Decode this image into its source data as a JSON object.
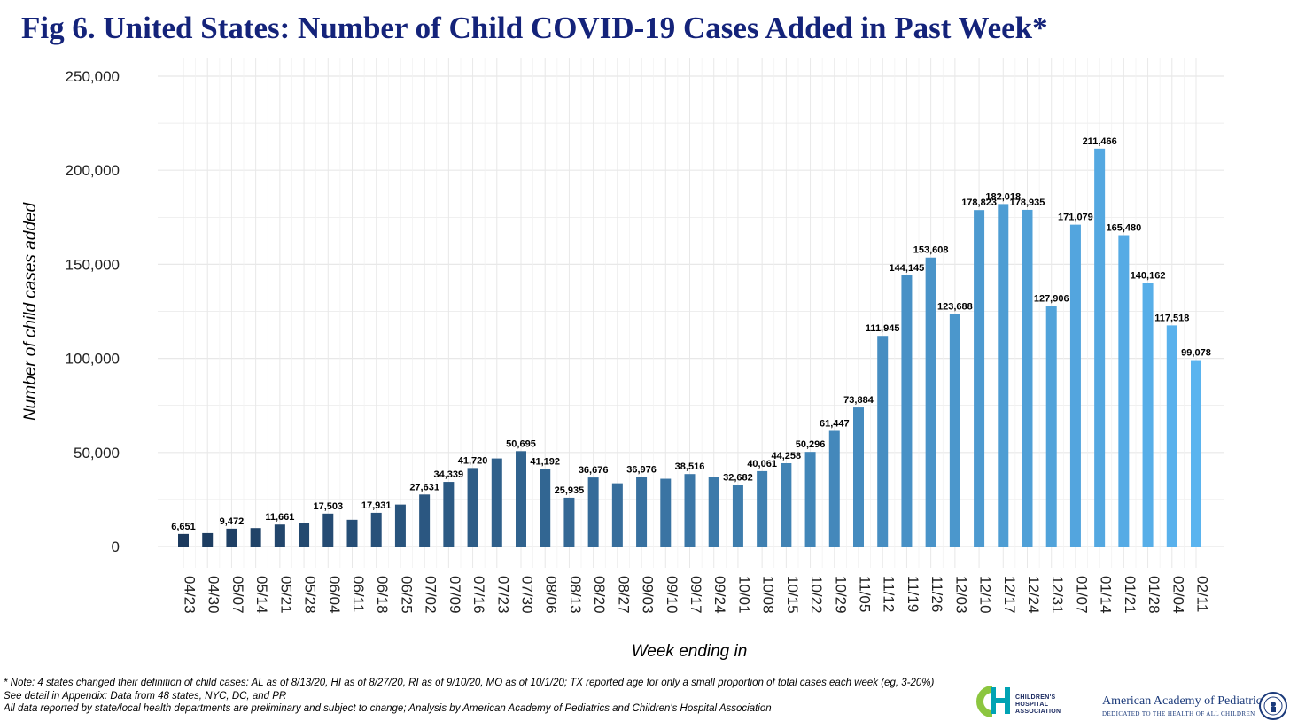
{
  "chart_data": {
    "type": "bar",
    "title": "Fig 6. United States: Number of Child COVID-19 Cases Added in Past Week*",
    "xlabel": "Week ending in",
    "ylabel": "Number of child cases added",
    "ylim": [
      0,
      250000
    ],
    "yticks": [
      0,
      50000,
      100000,
      150000,
      200000,
      250000
    ],
    "ytick_labels": [
      "0",
      "50,000",
      "100,000",
      "150,000",
      "200,000",
      "250,000"
    ],
    "grid": true,
    "categories": [
      "04/23",
      "04/30",
      "05/07",
      "05/14",
      "05/21",
      "05/28",
      "06/04",
      "06/11",
      "06/18",
      "06/25",
      "07/02",
      "07/09",
      "07/16",
      "07/23",
      "07/30",
      "08/06",
      "08/13",
      "08/20",
      "08/27",
      "09/03",
      "09/10",
      "09/17",
      "09/24",
      "10/01",
      "10/08",
      "10/15",
      "10/22",
      "10/29",
      "11/05",
      "11/12",
      "11/19",
      "11/26",
      "12/03",
      "12/10",
      "12/17",
      "12/24",
      "12/31",
      "01/07",
      "01/14",
      "01/21",
      "01/28",
      "02/04",
      "02/11"
    ],
    "values": [
      6651,
      7100,
      9472,
      9800,
      11661,
      12700,
      17503,
      14200,
      17931,
      22300,
      27631,
      34339,
      41720,
      46800,
      50695,
      41192,
      25935,
      36676,
      33600,
      36976,
      36000,
      38516,
      36900,
      32682,
      40061,
      44258,
      50296,
      61447,
      73884,
      111945,
      144145,
      153608,
      123688,
      178823,
      182018,
      178935,
      127906,
      171079,
      211466,
      165480,
      140162,
      117518,
      99078
    ],
    "data_labels": [
      "6,651",
      "",
      "9,472",
      "",
      "11,661",
      "",
      "17,503",
      "",
      "17,931",
      "",
      "27,631",
      "34,339",
      "41,720",
      "",
      "50,695",
      "41,192",
      "25,935",
      "36,676",
      "",
      "36,976",
      "",
      "38,516",
      "",
      "32,682",
      "40,061",
      "44,258",
      "50,296",
      "61,447",
      "73,884",
      "111,945",
      "144,145",
      "153,608",
      "123,688",
      "178,823",
      "182,018",
      "178,935",
      "127,906",
      "171,079",
      "211,466",
      "165,480",
      "140,162",
      "117,518",
      "99,078"
    ],
    "colors": {
      "bar_start": "#1c3a5e",
      "bar_end": "#5ab4ef",
      "title": "#14237a",
      "grid": "#e8e8e8"
    }
  },
  "notes": [
    "* Note: 4 states changed their definition of child cases: AL as of 8/13/20, HI as of 8/27/20, RI as of 9/10/20, MO as of 10/1/20; TX reported age for only a small proportion of total cases each week (eg, 3-20%)",
    "See detail in Appendix: Data from 48 states, NYC, DC, and PR",
    "All data reported by state/local health departments are preliminary and subject to change; Analysis by American Academy of Pediatrics and Children's Hospital Association"
  ],
  "logos": {
    "cha_line1": "CHILDREN'S",
    "cha_line2": "HOSPITAL",
    "cha_line3": "ASSOCIATION",
    "aap_name": "American Academy of Pediatrics",
    "aap_tagline": "DEDICATED TO THE HEALTH OF ALL CHILDREN",
    "cha_icon": "cha-logo-icon",
    "aap_icon": "aap-seal-icon"
  }
}
